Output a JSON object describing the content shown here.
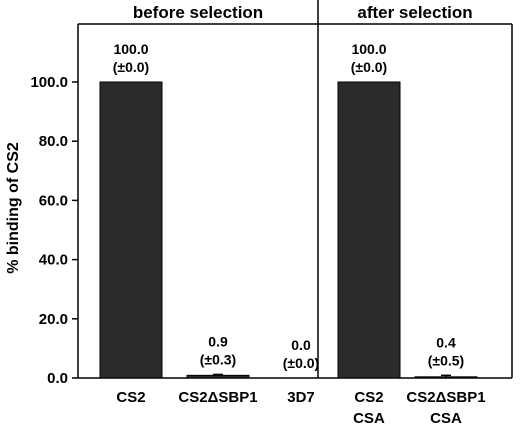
{
  "chart_data": {
    "type": "bar",
    "ylabel": "% binding of CS2",
    "ylim": [
      0,
      115
    ],
    "yticks": [
      {
        "value": 0,
        "label": "0.0"
      },
      {
        "value": 20,
        "label": "20.0"
      },
      {
        "value": 40,
        "label": "40.0"
      },
      {
        "value": 60,
        "label": "60.0"
      },
      {
        "value": 80,
        "label": "80.0"
      },
      {
        "value": 100,
        "label": "100.0"
      }
    ],
    "panels": [
      {
        "title": "before selection",
        "bars": [
          {
            "category": [
              "CS2"
            ],
            "value": 100.0,
            "value_label": "100.0",
            "error": 0.0,
            "error_label": "(±0.0)"
          },
          {
            "category": [
              "CS2ΔSBP1"
            ],
            "value": 0.9,
            "value_label": "0.9",
            "error": 0.3,
            "error_label": "(±0.3)"
          },
          {
            "category": [
              "3D7"
            ],
            "value": 0.0,
            "value_label": "0.0",
            "error": 0.0,
            "error_label": "(±0.0)"
          }
        ]
      },
      {
        "title": "after selection",
        "bars": [
          {
            "category": [
              "CS2",
              "CSA"
            ],
            "value": 100.0,
            "value_label": "100.0",
            "error": 0.0,
            "error_label": "(±0.0)"
          },
          {
            "category": [
              "CS2ΔSBP1",
              "CSA"
            ],
            "value": 0.4,
            "value_label": "0.4",
            "error": 0.5,
            "error_label": "(±0.5)"
          }
        ]
      }
    ]
  }
}
